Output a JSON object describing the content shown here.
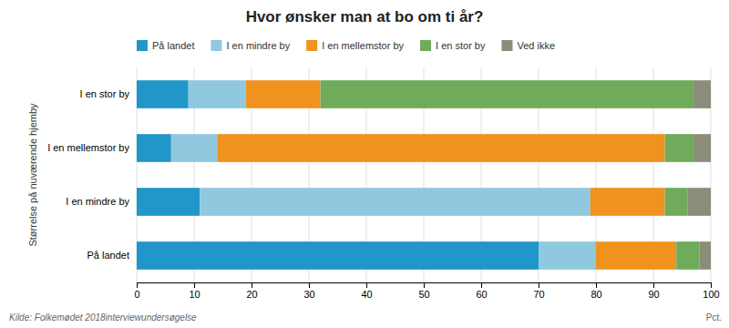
{
  "chart_data": {
    "type": "bar",
    "orientation": "horizontal",
    "stacked": true,
    "title": "Hvor ønsker man at bo om ti år?",
    "ylabel": "Størrelse på nuværende hjemby",
    "xlabel": "Pct.",
    "source": "Kilde: Folkemødet 2018interviewundersøgelse",
    "categories": [
      "På landet",
      "I en mindre by",
      "I en mellemstor by",
      "I en stor by"
    ],
    "series": [
      {
        "name": "På landet",
        "color": "#2196C8",
        "values": [
          70,
          11,
          6,
          9
        ]
      },
      {
        "name": "I en mindre by",
        "color": "#90C8E0",
        "values": [
          10,
          68,
          8,
          10
        ]
      },
      {
        "name": "I en mellemstor by",
        "color": "#F0921E",
        "values": [
          14,
          13,
          78,
          13
        ]
      },
      {
        "name": "I en stor by",
        "color": "#6FAB5A",
        "values": [
          4,
          4,
          5,
          65
        ]
      },
      {
        "name": "Ved ikke",
        "color": "#8C8C7A",
        "values": [
          2,
          4,
          3,
          3
        ]
      }
    ],
    "xlim": [
      0,
      100
    ],
    "xticks": [
      0,
      10,
      20,
      30,
      40,
      50,
      60,
      70,
      80,
      90,
      100
    ],
    "grid": true,
    "legend": "top"
  }
}
